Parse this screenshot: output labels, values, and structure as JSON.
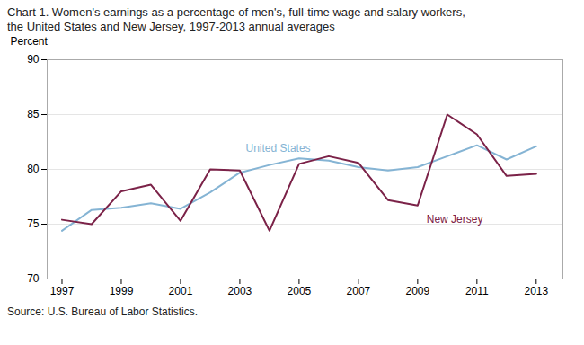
{
  "chart_data": {
    "type": "line",
    "title": "Chart 1. Women's earnings as a percentage of men's, full-time wage and salary workers,",
    "subtitle": "the United States and New Jersey, 1997-2013 annual averages",
    "source": "Source:  U.S. Bureau of Labor Statistics.",
    "ylabel": "Percent",
    "x": [
      1997,
      1998,
      1999,
      2000,
      2001,
      2002,
      2003,
      2004,
      2005,
      2006,
      2007,
      2008,
      2009,
      2010,
      2011,
      2012,
      2013
    ],
    "series": [
      {
        "name": "United States",
        "color": "#85b4d4",
        "values": [
          74.4,
          76.3,
          76.5,
          76.9,
          76.4,
          77.9,
          79.7,
          80.4,
          81.0,
          80.8,
          80.2,
          79.9,
          80.2,
          81.2,
          82.2,
          80.9,
          82.1
        ]
      },
      {
        "name": "New Jersey",
        "color": "#7b2248",
        "values": [
          75.4,
          75.0,
          78.0,
          78.6,
          75.3,
          80.0,
          79.9,
          74.4,
          80.5,
          81.2,
          80.6,
          77.2,
          76.7,
          85.0,
          83.2,
          79.4,
          79.6
        ]
      }
    ],
    "xlim": [
      1996.5,
      2013.9
    ],
    "xticks": [
      1997,
      1999,
      2001,
      2003,
      2005,
      2007,
      2009,
      2011,
      2013
    ],
    "ylim": [
      70,
      90
    ],
    "yticks": [
      70,
      75,
      80,
      85,
      90
    ],
    "grid": true,
    "annotations": [
      {
        "text": "United States",
        "x": 2003.2,
        "y": 81.6,
        "color": "#85b4d4"
      },
      {
        "text": "New Jersey",
        "x": 2009.3,
        "y": 75.8,
        "color": "#7b2248"
      }
    ]
  }
}
